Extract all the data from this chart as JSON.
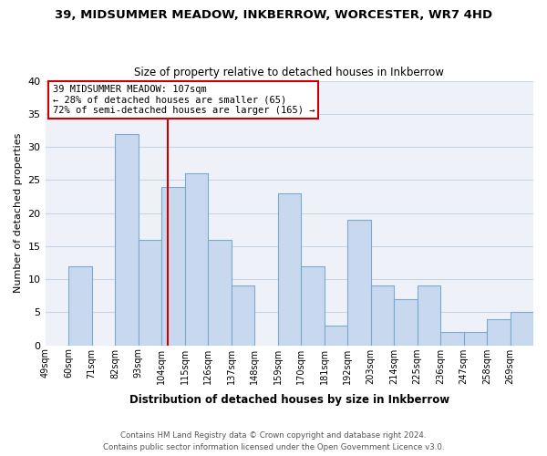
{
  "title": "39, MIDSUMMER MEADOW, INKBERROW, WORCESTER, WR7 4HD",
  "subtitle": "Size of property relative to detached houses in Inkberrow",
  "xlabel": "Distribution of detached houses by size in Inkberrow",
  "ylabel": "Number of detached properties",
  "bin_labels": [
    "49sqm",
    "60sqm",
    "71sqm",
    "82sqm",
    "93sqm",
    "104sqm",
    "115sqm",
    "126sqm",
    "137sqm",
    "148sqm",
    "159sqm",
    "170sqm",
    "181sqm",
    "192sqm",
    "203sqm",
    "214sqm",
    "225sqm",
    "236sqm",
    "247sqm",
    "258sqm",
    "269sqm"
  ],
  "bin_left_edges": [
    49,
    60,
    71,
    82,
    93,
    104,
    115,
    126,
    137,
    148,
    159,
    170,
    181,
    192,
    203,
    214,
    225,
    236,
    247,
    258,
    269
  ],
  "bin_width": 11,
  "bar_heights": [
    0,
    12,
    0,
    32,
    16,
    24,
    26,
    16,
    9,
    0,
    23,
    12,
    3,
    19,
    9,
    7,
    9,
    2,
    2,
    4,
    5
  ],
  "bar_color": "#c8d8ee",
  "bar_edge_color": "#7aaad0",
  "property_value": 107,
  "red_line_color": "#cc0000",
  "annotation_text": "39 MIDSUMMER MEADOW: 107sqm\n← 28% of detached houses are smaller (65)\n72% of semi-detached houses are larger (165) →",
  "annotation_box_color": "#ffffff",
  "annotation_box_edge": "#cc0000",
  "ylim": [
    0,
    40
  ],
  "yticks": [
    0,
    5,
    10,
    15,
    20,
    25,
    30,
    35,
    40
  ],
  "footer_line1": "Contains HM Land Registry data © Crown copyright and database right 2024.",
  "footer_line2": "Contains public sector information licensed under the Open Government Licence v3.0.",
  "grid_color": "#c8d4e8",
  "background_color": "#eef2f8"
}
